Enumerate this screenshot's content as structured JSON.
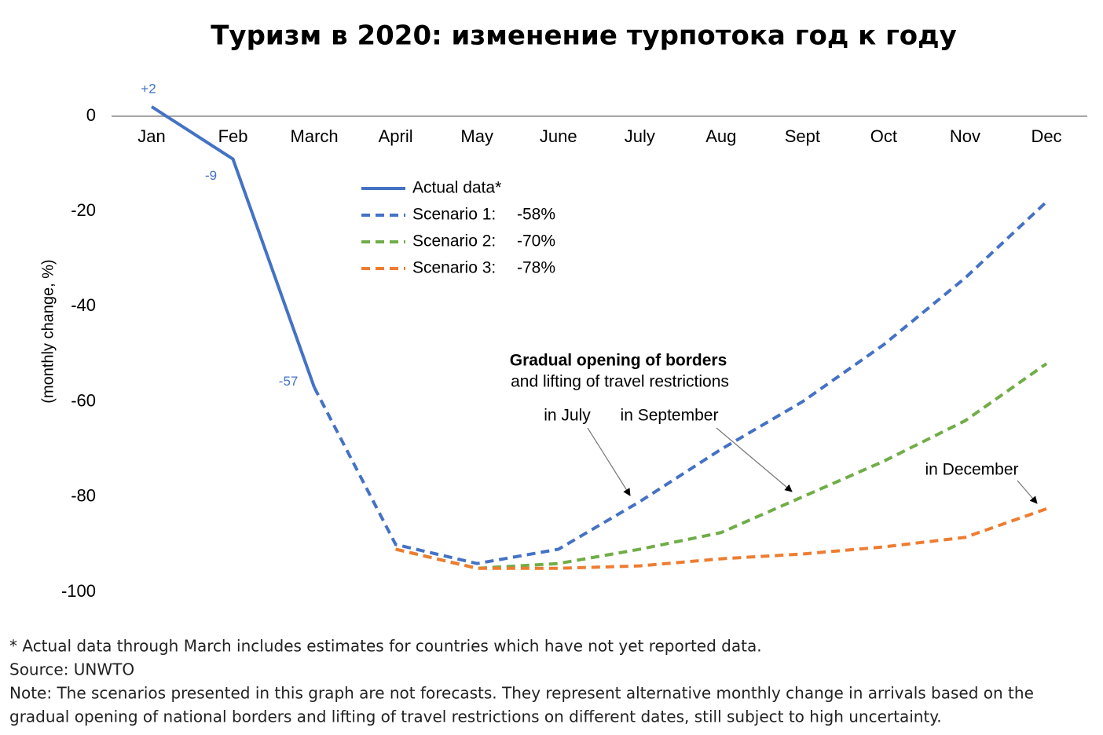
{
  "chart_data": {
    "type": "line",
    "title": "Туризм в 2020: изменение турпотока год к году",
    "y_label": "(monthly change, %)",
    "categories": [
      "Jan",
      "Feb",
      "March",
      "April",
      "May",
      "June",
      "July",
      "Aug",
      "Sept",
      "Oct",
      "Nov",
      "Dec"
    ],
    "series": [
      {
        "name": "Actual data*",
        "color": "#4472c4",
        "dashed": false,
        "values": [
          2,
          -9,
          -57,
          null,
          null,
          null,
          null,
          null,
          null,
          null,
          null,
          null
        ],
        "value_labels": [
          "+2",
          "-9",
          "-57",
          null,
          null,
          null,
          null,
          null,
          null,
          null,
          null,
          null
        ]
      },
      {
        "name": "Scenario 1:",
        "color": "#4472c4",
        "dashed": true,
        "annual_change": -58,
        "annual_change_label": "-58%",
        "values": [
          null,
          null,
          -57,
          -90,
          -94,
          -91,
          -81,
          -70,
          -60,
          -48,
          -34,
          -18
        ]
      },
      {
        "name": "Scenario 2:",
        "color": "#70ad47",
        "dashed": true,
        "annual_change": -70,
        "annual_change_label": "-70%",
        "values": [
          null,
          null,
          null,
          -91,
          -95,
          -94,
          -91,
          -87.5,
          -80,
          -72.5,
          -64,
          -52
        ]
      },
      {
        "name": "Scenario 3:",
        "color": "#ed7d31",
        "dashed": true,
        "annual_change": -78,
        "annual_change_label": "-78%",
        "values": [
          null,
          null,
          null,
          -91,
          -95,
          -95,
          -94.5,
          -93,
          -92,
          -90.5,
          -88.5,
          -82.5
        ]
      }
    ],
    "ylim": [
      -100,
      0
    ],
    "yticks": [
      0,
      -20,
      -40,
      -60,
      -80,
      -100
    ],
    "grid": false,
    "annotations": [
      "Gradual opening of borders",
      "and lifting of travel restrictions",
      "in July",
      "in September",
      "in December"
    ],
    "footnotes": [
      "* Actual data through March includes estimates for countries which have not yet reported data.",
      "Source: UNWTO",
      "Note: The scenarios presented in this graph are not forecasts. They represent alternative monthly change in arrivals based on the",
      "gradual opening of national borders and lifting of travel restrictions on different dates, still subject to high uncertainty."
    ]
  }
}
